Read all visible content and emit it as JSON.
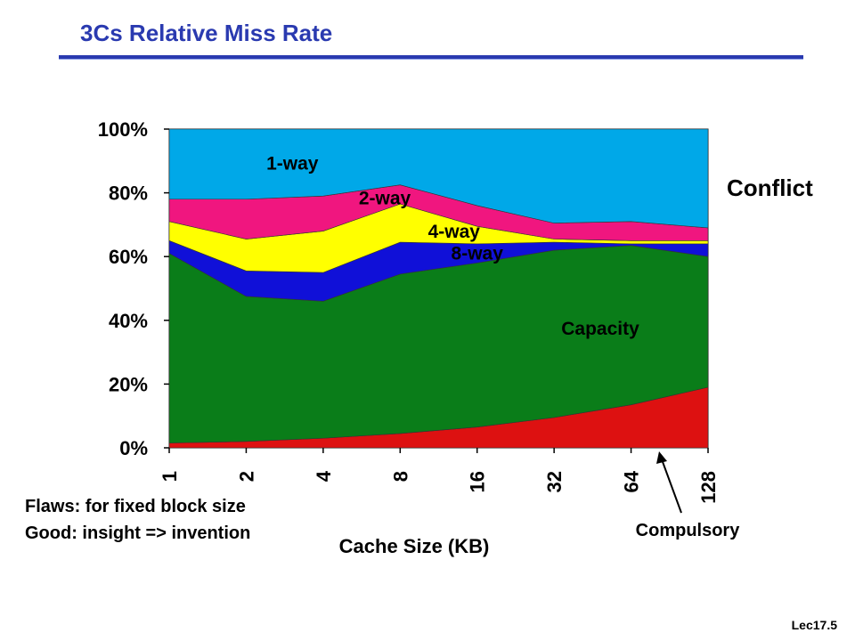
{
  "slide": {
    "title": "3Cs Relative Miss Rate",
    "notes": [
      "Flaws: for fixed block size",
      "Good: insight => invention"
    ],
    "footer": "Lec17.5"
  },
  "chart_data": {
    "type": "area",
    "stacked": true,
    "xlabel": "Cache Size (KB)",
    "ylabel": "",
    "categories": [
      "1",
      "2",
      "4",
      "8",
      "16",
      "32",
      "64",
      "128"
    ],
    "y_ticks": [
      "0%",
      "20%",
      "40%",
      "60%",
      "80%",
      "100%"
    ],
    "ylim": [
      0,
      100
    ],
    "series": [
      {
        "name": "Compulsory",
        "color": "#dd1111",
        "values": [
          1.5,
          2,
          3,
          4.5,
          6.5,
          9.5,
          13.5,
          19
        ]
      },
      {
        "name": "Capacity",
        "color": "#0a7d19",
        "values": [
          59.5,
          45.5,
          43,
          50,
          51.5,
          52.5,
          50,
          41
        ]
      },
      {
        "name": "8-way",
        "color": "#1010d8",
        "values": [
          4,
          8,
          9,
          10,
          6,
          2.5,
          0.5,
          4
        ]
      },
      {
        "name": "4-way",
        "color": "#ffff00",
        "values": [
          6,
          10,
          13,
          12,
          5.5,
          1,
          1,
          1
        ]
      },
      {
        "name": "2-way",
        "color": "#f0167f",
        "values": [
          7,
          12.5,
          11,
          6,
          6.5,
          5,
          6,
          4
        ]
      },
      {
        "name": "1-way",
        "color": "#00a8e8",
        "values": [
          22,
          22,
          21,
          17.5,
          24,
          29.5,
          29,
          31
        ]
      }
    ],
    "annotations": [
      {
        "text": "Conflict"
      },
      {
        "text": "Compulsory"
      }
    ]
  }
}
